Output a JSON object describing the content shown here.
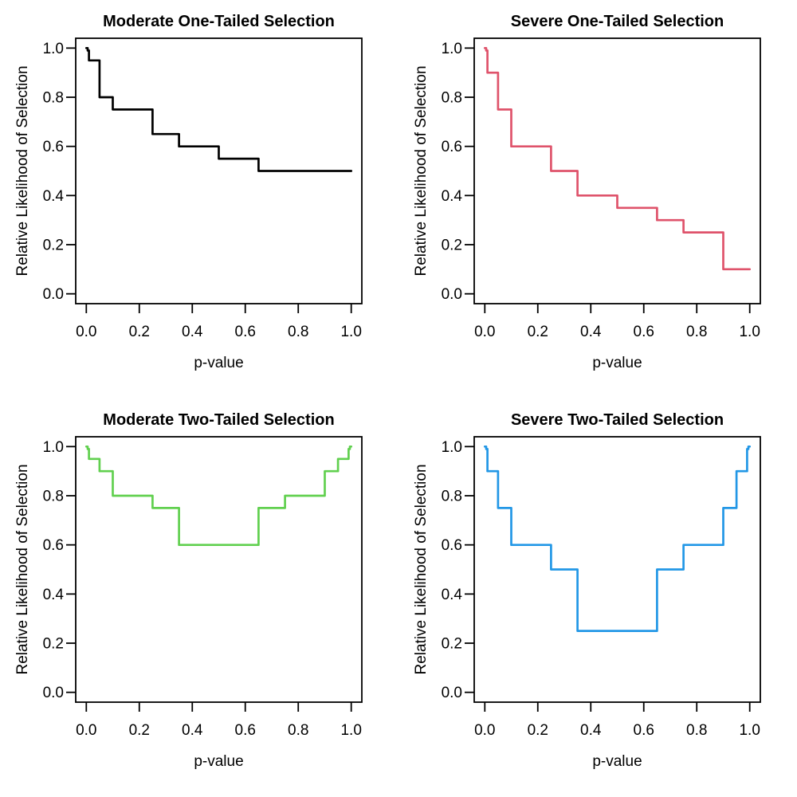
{
  "figure": {
    "background": "#FFFFFF",
    "axis_color": "#000000",
    "text_color": "#000000"
  },
  "chart_data": [
    {
      "type": "line",
      "subtype": "step-function",
      "position": "top-left",
      "title": "Moderate One-Tailed Selection",
      "xlabel": "p-value",
      "ylabel": "Relative Likelihood of Selection",
      "line_color": "#000000",
      "xlim": [
        0,
        1
      ],
      "ylim": [
        0,
        1
      ],
      "grid": false,
      "x_tick_labels": [
        "0.0",
        "0.2",
        "0.4",
        "0.6",
        "0.8",
        "1.0"
      ],
      "y_tick_labels": [
        "0.0",
        "0.2",
        "0.4",
        "0.6",
        "0.8",
        "1.0"
      ],
      "x_tick_values": [
        0.0,
        0.2,
        0.4,
        0.6,
        0.8,
        1.0
      ],
      "y_tick_values": [
        0.0,
        0.2,
        0.4,
        0.6,
        0.8,
        1.0
      ],
      "p_cutpoints": [
        0.005,
        0.01,
        0.05,
        0.1,
        0.25,
        0.35,
        0.5,
        0.65,
        0.75,
        0.9,
        0.95,
        0.99,
        0.995,
        1.0
      ],
      "weights": [
        1.0,
        0.99,
        0.95,
        0.8,
        0.75,
        0.65,
        0.6,
        0.55,
        0.5,
        0.5,
        0.5,
        0.5,
        0.5,
        0.5
      ]
    },
    {
      "type": "line",
      "subtype": "step-function",
      "position": "top-right",
      "title": "Severe One-Tailed Selection",
      "xlabel": "p-value",
      "ylabel": "Relative Likelihood of Selection",
      "line_color": "#DF536B",
      "xlim": [
        0,
        1
      ],
      "ylim": [
        0,
        1
      ],
      "grid": false,
      "x_tick_labels": [
        "0.0",
        "0.2",
        "0.4",
        "0.6",
        "0.8",
        "1.0"
      ],
      "y_tick_labels": [
        "0.0",
        "0.2",
        "0.4",
        "0.6",
        "0.8",
        "1.0"
      ],
      "x_tick_values": [
        0.0,
        0.2,
        0.4,
        0.6,
        0.8,
        1.0
      ],
      "y_tick_values": [
        0.0,
        0.2,
        0.4,
        0.6,
        0.8,
        1.0
      ],
      "p_cutpoints": [
        0.005,
        0.01,
        0.05,
        0.1,
        0.25,
        0.35,
        0.5,
        0.65,
        0.75,
        0.9,
        0.95,
        0.99,
        0.995,
        1.0
      ],
      "weights": [
        1.0,
        0.99,
        0.9,
        0.75,
        0.6,
        0.5,
        0.4,
        0.35,
        0.3,
        0.25,
        0.1,
        0.1,
        0.1,
        0.1
      ]
    },
    {
      "type": "line",
      "subtype": "step-function",
      "position": "bottom-left",
      "title": "Moderate Two-Tailed Selection",
      "xlabel": "p-value",
      "ylabel": "Relative Likelihood of Selection",
      "line_color": "#61D04F",
      "xlim": [
        0,
        1
      ],
      "ylim": [
        0,
        1
      ],
      "grid": false,
      "x_tick_labels": [
        "0.0",
        "0.2",
        "0.4",
        "0.6",
        "0.8",
        "1.0"
      ],
      "y_tick_labels": [
        "0.0",
        "0.2",
        "0.4",
        "0.6",
        "0.8",
        "1.0"
      ],
      "x_tick_values": [
        0.0,
        0.2,
        0.4,
        0.6,
        0.8,
        1.0
      ],
      "y_tick_values": [
        0.0,
        0.2,
        0.4,
        0.6,
        0.8,
        1.0
      ],
      "p_cutpoints": [
        0.005,
        0.01,
        0.05,
        0.1,
        0.25,
        0.35,
        0.5,
        0.65,
        0.75,
        0.9,
        0.95,
        0.99,
        0.995,
        1.0
      ],
      "weights": [
        1.0,
        0.99,
        0.95,
        0.9,
        0.8,
        0.75,
        0.6,
        0.6,
        0.75,
        0.8,
        0.9,
        0.95,
        0.99,
        1.0
      ]
    },
    {
      "type": "line",
      "subtype": "step-function",
      "position": "bottom-right",
      "title": "Severe Two-Tailed Selection",
      "xlabel": "p-value",
      "ylabel": "Relative Likelihood of Selection",
      "line_color": "#2297E6",
      "xlim": [
        0,
        1
      ],
      "ylim": [
        0,
        1
      ],
      "grid": false,
      "x_tick_labels": [
        "0.0",
        "0.2",
        "0.4",
        "0.6",
        "0.8",
        "1.0"
      ],
      "y_tick_labels": [
        "0.0",
        "0.2",
        "0.4",
        "0.6",
        "0.8",
        "1.0"
      ],
      "x_tick_values": [
        0.0,
        0.2,
        0.4,
        0.6,
        0.8,
        1.0
      ],
      "y_tick_values": [
        0.0,
        0.2,
        0.4,
        0.6,
        0.8,
        1.0
      ],
      "p_cutpoints": [
        0.005,
        0.01,
        0.05,
        0.1,
        0.25,
        0.35,
        0.5,
        0.65,
        0.75,
        0.9,
        0.95,
        0.99,
        0.995,
        1.0
      ],
      "weights": [
        1.0,
        0.99,
        0.9,
        0.75,
        0.6,
        0.5,
        0.25,
        0.25,
        0.5,
        0.6,
        0.75,
        0.9,
        0.99,
        1.0
      ]
    }
  ]
}
